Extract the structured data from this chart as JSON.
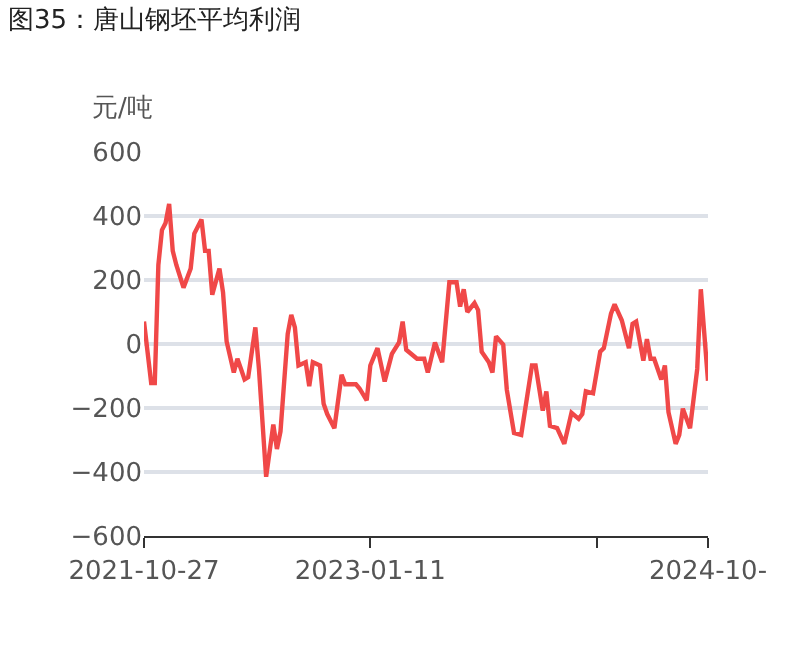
{
  "chart_data": {
    "type": "line",
    "title": "图35：唐山钢坯平均利润",
    "ylabel": "元/吨",
    "x": [
      "2021-10-27",
      "2021-11-10",
      "2021-11-17",
      "2021-11-24",
      "2021-12-01",
      "2021-12-08",
      "2021-12-15",
      "2021-12-22",
      "2021-12-29",
      "2022-01-12",
      "2022-01-26",
      "2022-02-02",
      "2022-02-16",
      "2022-02-23",
      "2022-03-02",
      "2022-03-09",
      "2022-03-23",
      "2022-03-30",
      "2022-04-06",
      "2022-04-20",
      "2022-04-27",
      "2022-05-04",
      "2022-05-11",
      "2022-05-18",
      "2022-06-01",
      "2022-06-08",
      "2022-06-22",
      "2022-07-06",
      "2022-07-13",
      "2022-07-20",
      "2022-08-03",
      "2022-08-10",
      "2022-08-17",
      "2022-08-24",
      "2022-09-07",
      "2022-09-14",
      "2022-09-21",
      "2022-10-05",
      "2022-10-12",
      "2022-10-19",
      "2022-11-02",
      "2022-11-16",
      "2022-11-23",
      "2022-12-14",
      "2022-12-21",
      "2023-01-04",
      "2023-01-11",
      "2023-01-25",
      "2023-02-08",
      "2023-02-22",
      "2023-03-08",
      "2023-03-15",
      "2023-03-22",
      "2023-04-12",
      "2023-04-26",
      "2023-05-03",
      "2023-05-17",
      "2023-05-31",
      "2023-06-14",
      "2023-06-28",
      "2023-07-05",
      "2023-07-12",
      "2023-07-19",
      "2023-08-02",
      "2023-08-09",
      "2023-08-16",
      "2023-08-30",
      "2023-09-06",
      "2023-09-13",
      "2023-09-27",
      "2023-10-04",
      "2023-10-18",
      "2023-11-01",
      "2023-11-22",
      "2023-11-29",
      "2023-12-13",
      "2023-12-20",
      "2023-12-27",
      "2024-01-10",
      "2024-01-24",
      "2024-02-07",
      "2024-02-21",
      "2024-02-28",
      "2024-03-06",
      "2024-03-20",
      "2024-04-03",
      "2024-04-10",
      "2024-04-24",
      "2024-05-01",
      "2024-05-15",
      "2024-05-29",
      "2024-06-05",
      "2024-06-12",
      "2024-06-26",
      "2024-07-03",
      "2024-07-10",
      "2024-07-17",
      "2024-07-31",
      "2024-08-07",
      "2024-08-14",
      "2024-08-28",
      "2024-09-04",
      "2024-09-11",
      "2024-09-25",
      "2024-10-09",
      "2024-10-16",
      "2024-10-30"
    ],
    "series": [
      {
        "color": "#f04848",
        "values": [
          70,
          -122,
          -122,
          247,
          356,
          378,
          438,
          291,
          247,
          176,
          236,
          345,
          389,
          291,
          291,
          154,
          236,
          161,
          8,
          -89,
          -46,
          -78,
          -111,
          -104,
          52,
          -78,
          -415,
          -252,
          -328,
          -273,
          31,
          91,
          52,
          -67,
          -57,
          -132,
          -57,
          -67,
          -187,
          -219,
          -263,
          -96,
          -126,
          -126,
          -139,
          -176,
          -67,
          -13,
          -117,
          -31,
          5,
          70,
          -18,
          -46,
          -46,
          -89,
          5,
          -57,
          193,
          193,
          117,
          171,
          100,
          128,
          106,
          -24,
          -57,
          -89,
          24,
          -2,
          -143,
          -278,
          -284,
          -67,
          -67,
          -208,
          -148,
          -256,
          -263,
          -312,
          -215,
          -234,
          -219,
          -148,
          -154,
          -24,
          -13,
          95,
          124,
          74,
          -13,
          63,
          70,
          -52,
          15,
          -46,
          -46,
          -111,
          -67,
          -213,
          -312,
          -284,
          -202,
          -263,
          -78,
          171,
          -115
        ]
      }
    ],
    "xlim": [
      "2021-10-27",
      "2024-10-30"
    ],
    "xticks": [
      {
        "value": "2021-10-27",
        "label": "2021-10-27"
      },
      {
        "value": "2023-01-11",
        "label": "2023-01-11"
      },
      {
        "value": "2024-03-27",
        "label": null
      },
      {
        "value": "2024-10-30",
        "label": "2024-10-"
      }
    ],
    "ylim": [
      -600,
      600
    ],
    "yticks": [
      -600,
      -400,
      -200,
      0,
      200,
      400,
      600
    ],
    "grid": "y",
    "marker": "none",
    "line_style": "solid"
  }
}
